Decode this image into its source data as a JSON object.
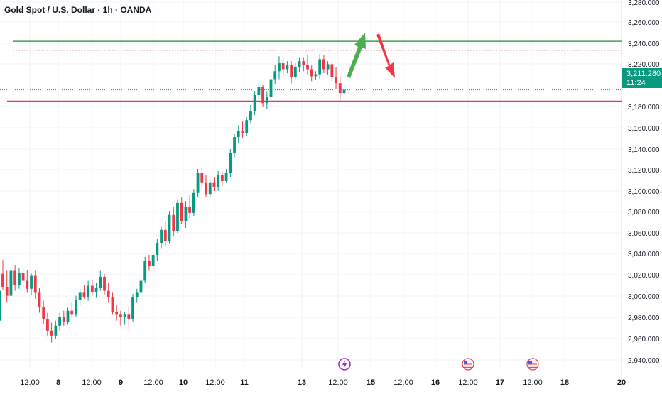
{
  "chart_data": {
    "type": "candlestick",
    "title": "Gold Spot / U.S. Dollar · 1h · OANDA",
    "y_axis": {
      "ticks": [
        "3,280.000",
        "3,260.000",
        "3,240.000",
        "3,220.000",
        "3,180.000",
        "3,160.000",
        "3,140.000",
        "3,120.000",
        "3,100.000",
        "3,080.000",
        "3,060.000",
        "3,040.000",
        "3,020.000",
        "3,000.000",
        "2,980.000",
        "2,960.000",
        "2,940.000"
      ],
      "range": [
        2936,
        3282
      ]
    },
    "x_axis": {
      "ticks": [
        "12:00",
        "8",
        "12:00",
        "9",
        "12:00",
        "10",
        "12:00",
        "11",
        "13",
        "12:00",
        "15",
        "12:00",
        "16",
        "12:00",
        "17",
        "12:00",
        "18",
        "20"
      ]
    },
    "current_price": {
      "value": 3211.28,
      "label": "3,211.280",
      "countdown": "11:24"
    },
    "levels": [
      {
        "name": "resistance",
        "value": 3260,
        "color": "#43a047",
        "style": "solid"
      },
      {
        "name": "target",
        "value": 3251,
        "color": "#f23645",
        "style": "dotted"
      },
      {
        "name": "support",
        "value": 3200,
        "color": "#f23645",
        "style": "solid"
      },
      {
        "name": "last-price",
        "value": 3211.3,
        "color": "#089981",
        "style": "dotted"
      }
    ],
    "candles": [
      [
        3027,
        3041,
        3011,
        3014
      ],
      [
        3014,
        3030,
        2998,
        3005
      ],
      [
        3005,
        3034,
        3000,
        3030
      ],
      [
        3030,
        3036,
        3010,
        3016
      ],
      [
        3016,
        3033,
        3012,
        3028
      ],
      [
        3028,
        3032,
        3013,
        3020
      ],
      [
        3020,
        3031,
        3008,
        3012
      ],
      [
        3012,
        3028,
        3006,
        3025
      ],
      [
        3025,
        3030,
        3002,
        3008
      ],
      [
        3008,
        3013,
        2988,
        2994
      ],
      [
        2994,
        3000,
        2977,
        2982
      ],
      [
        2982,
        2988,
        2964,
        2970
      ],
      [
        2970,
        2978,
        2958,
        2965
      ],
      [
        2965,
        2980,
        2962,
        2975
      ],
      [
        2975,
        2988,
        2970,
        2984
      ],
      [
        2984,
        2990,
        2975,
        2979
      ],
      [
        2979,
        2993,
        2976,
        2990
      ],
      [
        2990,
        2998,
        2983,
        2986
      ],
      [
        2986,
        3005,
        2984,
        3001
      ],
      [
        3001,
        3012,
        2996,
        3008
      ],
      [
        3008,
        3016,
        3002,
        3004
      ],
      [
        3004,
        3020,
        3000,
        3015
      ],
      [
        3015,
        3021,
        3005,
        3009
      ],
      [
        3009,
        3018,
        3003,
        3013
      ],
      [
        3013,
        3030,
        3010,
        3024
      ],
      [
        3024,
        3027,
        3006,
        3010
      ],
      [
        3010,
        3018,
        2998,
        3004
      ],
      [
        3004,
        3008,
        2986,
        2989
      ],
      [
        2989,
        2996,
        2980,
        2986
      ],
      [
        2986,
        2990,
        2975,
        2984
      ],
      [
        2984,
        2989,
        2976,
        2986
      ],
      [
        2986,
        2994,
        2972,
        2982
      ],
      [
        2982,
        3007,
        2979,
        3004
      ],
      [
        3004,
        3012,
        2998,
        3008
      ],
      [
        3008,
        3025,
        3005,
        3020
      ],
      [
        3020,
        3044,
        3018,
        3040
      ],
      [
        3040,
        3046,
        3030,
        3035
      ],
      [
        3035,
        3049,
        3032,
        3046
      ],
      [
        3046,
        3062,
        3040,
        3058
      ],
      [
        3058,
        3074,
        3052,
        3071
      ],
      [
        3071,
        3080,
        3055,
        3060
      ],
      [
        3060,
        3090,
        3057,
        3086
      ],
      [
        3086,
        3094,
        3065,
        3070
      ],
      [
        3070,
        3101,
        3068,
        3098
      ],
      [
        3098,
        3104,
        3077,
        3080
      ],
      [
        3080,
        3100,
        3073,
        3094
      ],
      [
        3094,
        3106,
        3083,
        3088
      ],
      [
        3088,
        3112,
        3085,
        3108
      ],
      [
        3108,
        3132,
        3104,
        3128
      ],
      [
        3128,
        3132,
        3114,
        3118
      ],
      [
        3118,
        3126,
        3104,
        3107
      ],
      [
        3107,
        3122,
        3103,
        3118
      ],
      [
        3118,
        3124,
        3110,
        3114
      ],
      [
        3114,
        3130,
        3110,
        3126
      ],
      [
        3126,
        3129,
        3115,
        3120
      ],
      [
        3120,
        3132,
        3118,
        3128
      ],
      [
        3128,
        3152,
        3124,
        3148
      ],
      [
        3148,
        3167,
        3144,
        3164
      ],
      [
        3164,
        3176,
        3158,
        3170
      ],
      [
        3170,
        3180,
        3163,
        3168
      ],
      [
        3168,
        3184,
        3165,
        3181
      ],
      [
        3181,
        3196,
        3178,
        3190
      ],
      [
        3190,
        3210,
        3186,
        3206
      ],
      [
        3206,
        3221,
        3200,
        3214
      ],
      [
        3214,
        3216,
        3194,
        3198
      ],
      [
        3198,
        3210,
        3192,
        3204
      ],
      [
        3204,
        3226,
        3200,
        3222
      ],
      [
        3222,
        3236,
        3217,
        3230
      ],
      [
        3230,
        3245,
        3222,
        3238
      ],
      [
        3238,
        3243,
        3225,
        3232
      ],
      [
        3232,
        3240,
        3228,
        3236
      ],
      [
        3236,
        3240,
        3218,
        3224
      ],
      [
        3224,
        3238,
        3222,
        3234
      ],
      [
        3234,
        3244,
        3229,
        3240
      ],
      [
        3240,
        3244,
        3230,
        3236
      ],
      [
        3236,
        3246,
        3226,
        3232
      ],
      [
        3232,
        3236,
        3220,
        3225
      ],
      [
        3225,
        3230,
        3221,
        3227
      ],
      [
        3227,
        3247,
        3222,
        3242
      ],
      [
        3242,
        3246,
        3228,
        3232
      ],
      [
        3232,
        3240,
        3226,
        3237
      ],
      [
        3237,
        3239,
        3220,
        3224
      ],
      [
        3224,
        3234,
        3212,
        3218
      ],
      [
        3218,
        3225,
        3200,
        3208
      ],
      [
        3208,
        3215,
        3198,
        3211.3
      ]
    ],
    "arrows": [
      {
        "direction": "up",
        "color": "#4caf50"
      },
      {
        "direction": "down",
        "color": "#f23645"
      }
    ],
    "event_markers": [
      "lightning",
      "us-flag",
      "us-flag"
    ],
    "colors": {
      "up": "#089981",
      "down": "#f23645",
      "grid": "#f0f3fa"
    }
  }
}
